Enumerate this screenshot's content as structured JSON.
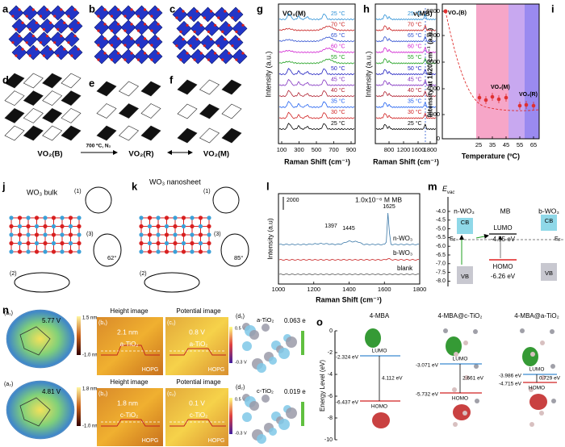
{
  "labels": [
    "a",
    "b",
    "c",
    "d",
    "e",
    "f",
    "g",
    "h",
    "i",
    "j",
    "k",
    "l",
    "m",
    "n",
    "o"
  ],
  "phases": {
    "b": "VO₂(B)",
    "condition": "700 ºC, N₂",
    "r": "VO₂(R)",
    "m": "VO₂(M)"
  },
  "g": {
    "title": "VO₂(M)",
    "y_label": "Intensity (a.u.)",
    "x_label": "Raman Shift (cm⁻¹)",
    "x_ticks": [
      "100",
      "300",
      "500",
      "700",
      "900"
    ],
    "temperatures": [
      "25 °C",
      "70 °C",
      "65 °C",
      "60 °C",
      "55 °C",
      "50 °C",
      "45 °C",
      "40 °C",
      "35 °C",
      "30 °C",
      "25 °C"
    ]
  },
  "h": {
    "title": "ν(MB)",
    "y_label": "Intensity (a.u.)",
    "x_label": "Raman Shift (cm⁻¹)",
    "x_ticks": [
      "800",
      "1200",
      "1600",
      "1800"
    ],
    "temperatures": [
      "25 °C",
      "70 °C",
      "65 °C",
      "60 °C",
      "55 °C",
      "50 °C",
      "45 °C",
      "40 °C",
      "35 °C",
      "30 °C",
      "25 °C"
    ]
  },
  "i": {
    "y_label": "Intensity at 1620 cm⁻¹ (a.u.)",
    "x_label": "Temperature (ºC)",
    "y_ticks": [
      "9800",
      "8000",
      "6000",
      "4000",
      "2000",
      "0"
    ],
    "x_ticks": [
      "25",
      "35",
      "45",
      "55",
      "65"
    ],
    "phase_b": "VO₂(B)",
    "phase_m": "VO₂(M)",
    "phase_r": "VO₂(R)"
  },
  "j": {
    "title": "WO₃ bulk",
    "insets": [
      "(1)",
      "(2)",
      "(3)"
    ],
    "angle": "62°"
  },
  "k": {
    "title": "WO₃ nanosheet",
    "insets": [
      "(1)",
      "(2)",
      "(3)"
    ],
    "angle": "85°"
  },
  "l": {
    "y_label": "Intensity (a.u)",
    "x_label": "Raman Shift (cm⁻¹)",
    "x_ticks": [
      "1000",
      "1200",
      "1400",
      "1600",
      "1800"
    ],
    "scale_bar": "2000",
    "concentration": "1.0x10⁻⁶ M MB",
    "peaks": [
      "1397",
      "1445",
      "1625"
    ],
    "curves": [
      "n-WO₃",
      "b-WO₃",
      "blank"
    ]
  },
  "m": {
    "axis_title": "E",
    "axis_title_sub": "vac",
    "y_ticks": [
      "-4.0",
      "-4.5",
      "-5.0",
      "-5.5",
      "-6.0",
      "-6.5",
      "-7.0",
      "-7.5",
      "-8.0"
    ],
    "columns": [
      "n-WO₃",
      "MB",
      "b-WO₃"
    ],
    "lumo": "LUMO",
    "lumo_energy": "-4.55 eV",
    "homo": "HOMO",
    "homo_energy": "-6.26 eV",
    "cb": "CB",
    "vb": "VB",
    "fermi": "E",
    "fermi_sub": "F"
  },
  "n": {
    "height_title": "Height image",
    "potential_title": "Potential image",
    "potential_max": "0.5 V",
    "potential_min": "-0.3 V",
    "substrate": "HOPG",
    "rows": [
      {
        "panels": [
          "(a₁)",
          "(b₁)",
          "(c₁)",
          "(d₁)"
        ],
        "potential": "5.77 V",
        "height_max": "1.5 nm",
        "height_min": "-1.0 nm",
        "height": "2.1 nm",
        "phase": "a-TiO₂",
        "surface_potential": "0.8 V",
        "charge": "0.063 e"
      },
      {
        "panels": [
          "(a₂)",
          "(b₂)",
          "(c₂)",
          "(d₂)"
        ],
        "potential": "4.81 V",
        "height_max": "1.8 nm",
        "height_min": "-1.0 nm",
        "height": "1.8 nm",
        "phase": "c-TiO₂",
        "surface_potential": "0.1 V",
        "charge": "0.019 e"
      }
    ]
  },
  "o": {
    "y_label": "Energy Level (eV)",
    "y_ticks": [
      "0",
      "-2",
      "-4",
      "-6",
      "-8",
      "-10"
    ],
    "lumo": "LUMO",
    "homo": "HOMO",
    "systems": [
      {
        "name": "4-MBA",
        "lumo": "-2.324 eV",
        "homo": "-6.437 eV",
        "gap": "4.112 eV"
      },
      {
        "name": "4-MBA@c-TiO₂",
        "lumo": "-3.071 eV",
        "homo": "-5.732 eV",
        "gap": "2.661 eV"
      },
      {
        "name": "4-MBA@a-TiO₂",
        "lumo": "-3.986 eV",
        "homo": "-4.715 eV",
        "gap": "0.729 eV"
      }
    ]
  }
}
